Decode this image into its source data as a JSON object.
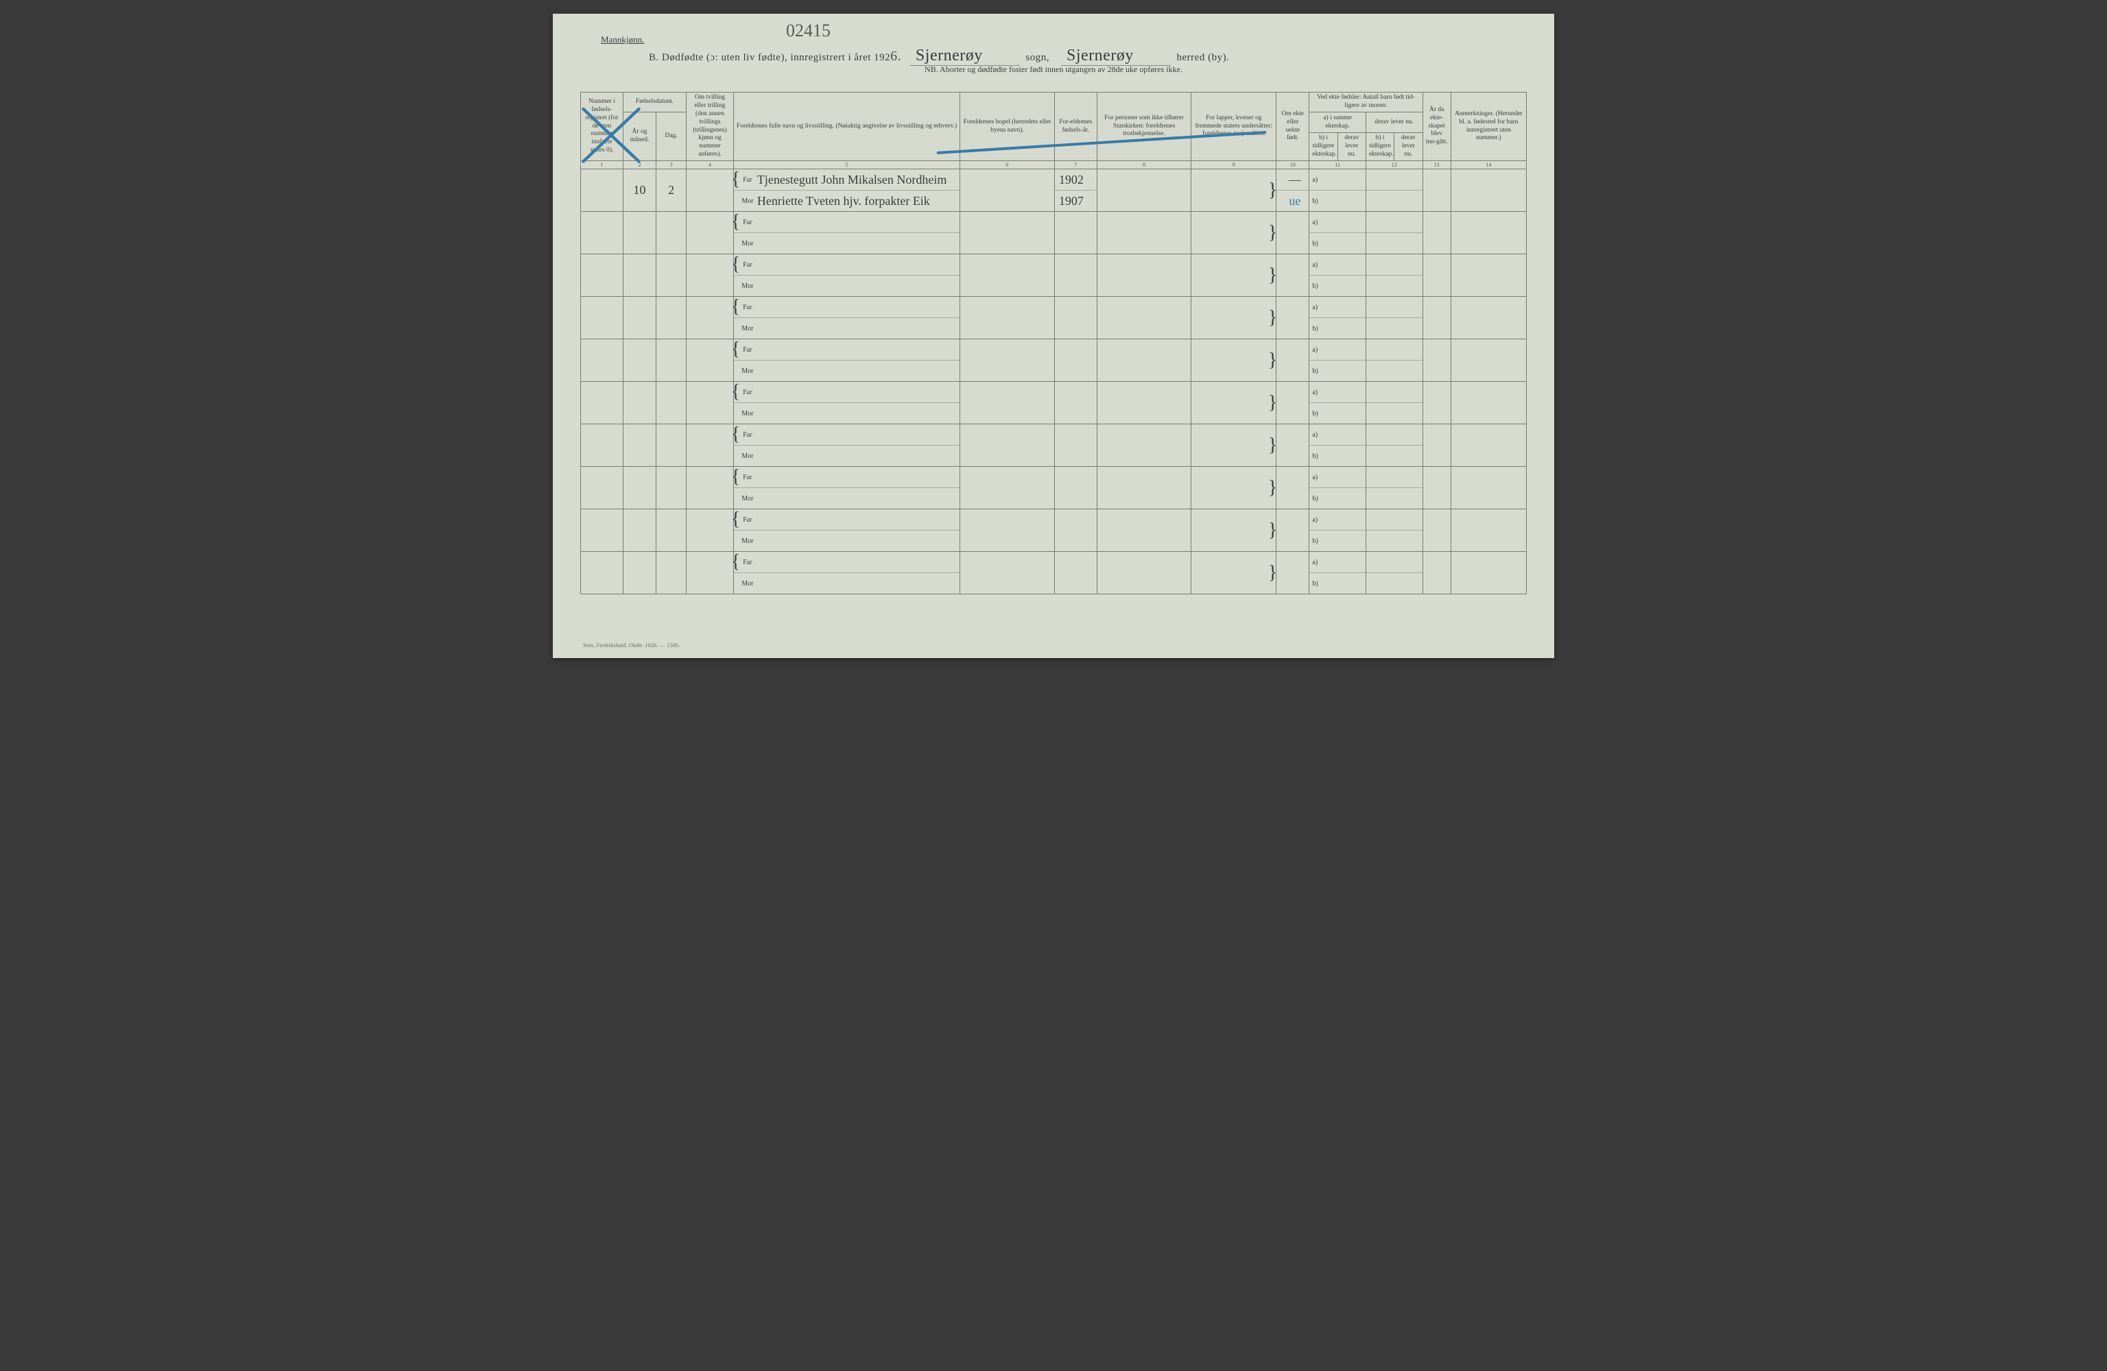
{
  "header": {
    "gender_label": "Mannkjønn.",
    "top_handwritten": "02415",
    "title_prefix": "B.   Dødfødte (ɔ: uten liv fødte), innregistrert i året 192",
    "year_suffix": "6.",
    "sogn_handwritten": "Sjernerøy",
    "sogn_label": "sogn,",
    "herred_handwritten": "Sjernerøy",
    "herred_label": "herred (by).",
    "subtitle": "NB.  Aborter og dødfødte foster født innen utgangen av 28de uke opføres ikke."
  },
  "columns": {
    "c1": "Nummer i fødsels-registret (for de uten nummer innførte settes 0).",
    "c2_group": "Fødselsdatum.",
    "c2": "År og måned.",
    "c3": "Dag.",
    "c4": "Om tvilling eller trilling (den annen tvillings (trillingenes) kjønn og nummer anføres).",
    "c5": "Foreldrenes fulle navn og livsstilling. (Nøiaktig angivelse av livsstilling og erhverv.)",
    "c6": "Foreldrenes bopel (herredets eller byens navn).",
    "c7": "For-eldrenes fødsels-år.",
    "c8": "For personer som ikke tilhører Statskirken: foreldrenes trosbekjennelse.",
    "c9": "For lapper, kvener og fremmede staters undersåtter: foreldrenes nasjonalitet.",
    "c10": "Om ekte eller uekte født.",
    "c11_group": "Ved ekte fødsler: Antall barn født tid-ligere av moren:",
    "c11a": "a) i samme ekteskap.",
    "c11b": "derav lever nu.",
    "c11c": "b) i tidligere ekteskap.",
    "c11d": "derav lever nu.",
    "c13": "År da ekte-skapet blev inn-gått.",
    "c14": "Anmerkninger. (Herunder bl. a. fødested for barn innregistrert uten nummer.)"
  },
  "colnums": [
    "1",
    "2",
    "3",
    "4",
    "5",
    "6",
    "7",
    "8",
    "9",
    "10",
    "11",
    "12",
    "13",
    "14"
  ],
  "row_labels": {
    "far": "Far",
    "mor": "Mor",
    "a": "a)",
    "b": "b)"
  },
  "entry1": {
    "maaned": "10",
    "dag": "2",
    "far_text": "Tjenestegutt John Mikalsen Nordheim",
    "mor_text": "Henriette Tveten hjv. forpakter Eik",
    "far_year": "1902",
    "mor_year": "1907",
    "ekte": "ue",
    "col10_far": "—"
  },
  "footer": "Sem, Fredrikshald. Oktbr. 1026. — 1500.",
  "colors": {
    "paper": "#d8dcd0",
    "ink": "#3a3a3a",
    "rule": "#7a7a72",
    "blue": "#3a7aa8"
  },
  "col_widths_pct": [
    4.5,
    3.5,
    3.2,
    5.0,
    24,
    12,
    4.5,
    11,
    10,
    3.5,
    3,
    3,
    3,
    3,
    3,
    10
  ]
}
